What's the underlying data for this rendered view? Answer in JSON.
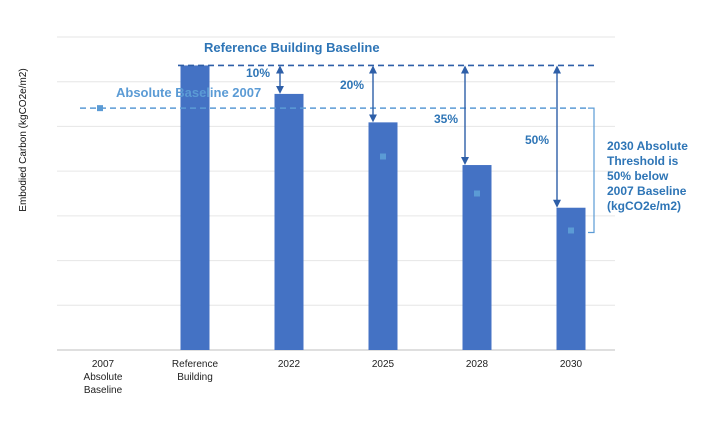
{
  "chart_data": {
    "type": "bar",
    "title": "",
    "ylabel": "Embodied Carbon (kgCO2e/m2)",
    "xlabel": "",
    "ylim": [
      0,
      110
    ],
    "grid": true,
    "categories": [
      [
        "2007",
        "Absolute",
        "Baseline"
      ],
      [
        "Reference",
        "Building"
      ],
      [
        "2022"
      ],
      [
        "2025"
      ],
      [
        "2028"
      ],
      [
        "2030"
      ]
    ],
    "values": [
      null,
      100,
      90,
      80,
      65,
      50
    ],
    "marker_values": [
      null,
      null,
      null,
      68,
      55,
      42
    ],
    "reference_line": {
      "label": "Reference Building Baseline",
      "value": 100
    },
    "absolute_line": {
      "label": "Absolute Baseline 2007",
      "value": 85
    },
    "reductions": [
      {
        "category_index": 2,
        "label": "10%"
      },
      {
        "category_index": 3,
        "label": "20%"
      },
      {
        "category_index": 4,
        "label": "35%"
      },
      {
        "category_index": 5,
        "label": "50%"
      }
    ],
    "annotation": [
      "2030 Absolute",
      "Threshold is",
      "50% below",
      "2007 Baseline",
      "(kgCO2e/m2)"
    ]
  },
  "colors": {
    "bar": "#4472c4",
    "reference_line": "#2e5fa8",
    "absolute_line": "#5b9bd5",
    "arrow": "#2e5fa8",
    "marker": "#5b9bd5",
    "grid": "#e6e6e6"
  }
}
